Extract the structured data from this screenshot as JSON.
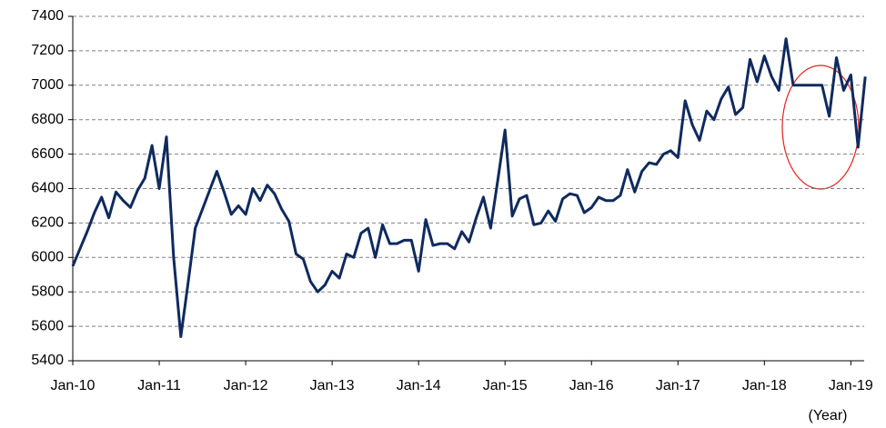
{
  "chart_data": {
    "type": "line",
    "x_label": "(Year)",
    "categories": [
      "Jan-10",
      null,
      null,
      null,
      null,
      null,
      null,
      null,
      null,
      null,
      null,
      null,
      "Jan-11",
      null,
      null,
      null,
      null,
      null,
      null,
      null,
      null,
      null,
      null,
      null,
      "Jan-12",
      null,
      null,
      null,
      null,
      null,
      null,
      null,
      null,
      null,
      null,
      null,
      "Jan-13",
      null,
      null,
      null,
      null,
      null,
      null,
      null,
      null,
      null,
      null,
      null,
      "Jan-14",
      null,
      null,
      null,
      null,
      null,
      null,
      null,
      null,
      null,
      null,
      null,
      "Jan-15",
      null,
      null,
      null,
      null,
      null,
      null,
      null,
      null,
      null,
      null,
      null,
      "Jan-16",
      null,
      null,
      null,
      null,
      null,
      null,
      null,
      null,
      null,
      null,
      null,
      "Jan-17",
      null,
      null,
      null,
      null,
      null,
      null,
      null,
      null,
      null,
      null,
      null,
      "Jan-18",
      null,
      null,
      null,
      null,
      null,
      null,
      null,
      null,
      null,
      null,
      null,
      "Jan-19",
      null,
      null
    ],
    "series": [
      {
        "color": "#0f2a5e",
        "values": [
          5950,
          6050,
          6150,
          6260,
          6350,
          6230,
          6380,
          6330,
          6290,
          6390,
          6460,
          6650,
          6400,
          6700,
          6000,
          5540,
          5850,
          6170,
          6280,
          6390,
          6500,
          6380,
          6250,
          6300,
          6250,
          6400,
          6330,
          6420,
          6370,
          6280,
          6210,
          6020,
          5990,
          5860,
          5800,
          5840,
          5920,
          5880,
          6020,
          6000,
          6140,
          6170,
          6000,
          6190,
          6080,
          6080,
          6100,
          6100,
          5920,
          6220,
          6070,
          6080,
          6080,
          6050,
          6150,
          6090,
          6230,
          6350,
          6170,
          6450,
          6740,
          6240,
          6340,
          6360,
          6190,
          6200,
          6270,
          6210,
          6340,
          6370,
          6360,
          6260,
          6290,
          6350,
          6330,
          6330,
          6360,
          6510,
          6380,
          6500,
          6550,
          6540,
          6600,
          6620,
          6580,
          6910,
          6770,
          6680,
          6850,
          6800,
          6920,
          6990,
          6830,
          6870,
          7150,
          7020,
          7170,
          7050,
          6970,
          7270,
          7000,
          7000,
          7000,
          7000,
          7000,
          6820,
          7160,
          6970,
          7060,
          6640,
          7050
        ]
      }
    ],
    "ylim": [
      5400,
      7400
    ],
    "yticks": [
      5400,
      5600,
      5800,
      6000,
      6200,
      6400,
      6600,
      6800,
      7000,
      7200,
      7400
    ],
    "grid": true
  }
}
